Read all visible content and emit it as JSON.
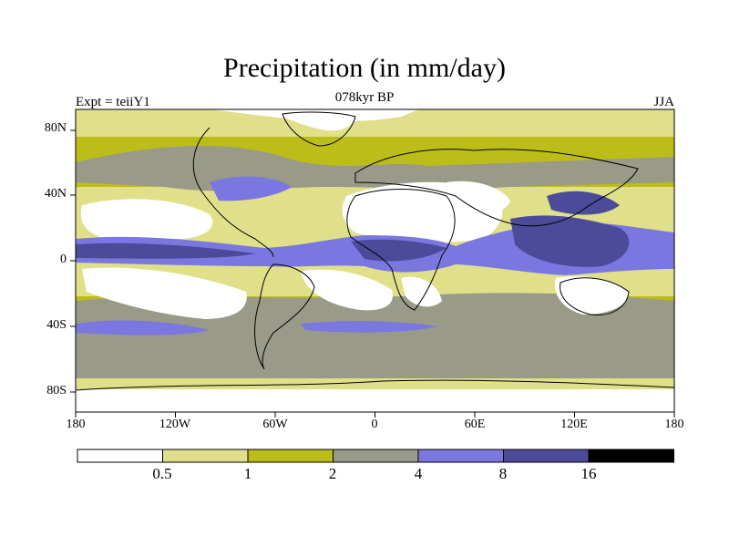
{
  "map": {
    "title": "Precipitation (in mm/day)",
    "subtitle": "078kyr BP",
    "left_string": "Expt = teiiY1",
    "right_string": "JJA",
    "lat_ticks": [
      "80N",
      "40N",
      "0",
      "40S",
      "80S"
    ],
    "lon_ticks": [
      "180",
      "120W",
      "60W",
      "0",
      "60E",
      "120E",
      "180"
    ]
  },
  "colorbar": {
    "labels": [
      "0.5",
      "1",
      "2",
      "4",
      "8",
      "16"
    ],
    "colors": [
      "#ffffff",
      "#e0e08a",
      "#bdbd1a",
      "#9a9a88",
      "#7a78e0",
      "#4b4b9a",
      "#000000"
    ]
  }
}
